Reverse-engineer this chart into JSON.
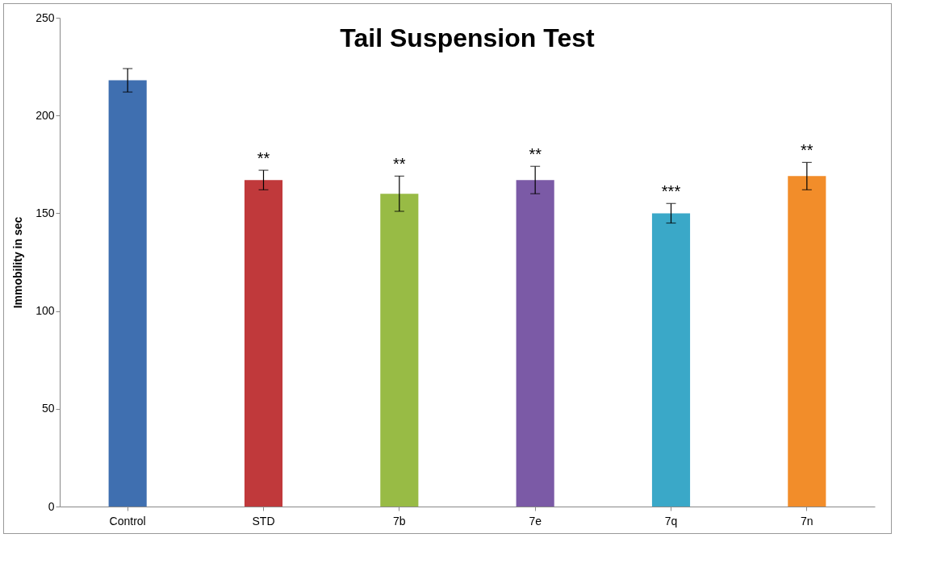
{
  "chart_data": {
    "type": "bar",
    "title": "Tail Suspension Test",
    "ylabel": "Immobility in sec",
    "categories": [
      "Control",
      "STD",
      "7b",
      "7e",
      "7q",
      "7n"
    ],
    "values": [
      218,
      167,
      160,
      167,
      150,
      169
    ],
    "errors": [
      6,
      5,
      9,
      7,
      5,
      7
    ],
    "colors": [
      "#3f6fb0",
      "#c0393b",
      "#98bb45",
      "#7b5aa6",
      "#3aa8c8",
      "#f28d2a"
    ],
    "ylim": [
      0,
      250
    ],
    "yticks": [
      0,
      50,
      100,
      150,
      200,
      250
    ],
    "grid": false,
    "legend": false,
    "annotations": [
      {
        "text": "**",
        "x": "STD",
        "y": 172
      },
      {
        "text": "**",
        "x": "7b",
        "y": 169
      },
      {
        "text": "**",
        "x": "7e",
        "y": 174
      },
      {
        "text": "***",
        "x": "7q",
        "y": 155
      },
      {
        "text": "**",
        "x": "7n",
        "y": 176
      }
    ]
  }
}
